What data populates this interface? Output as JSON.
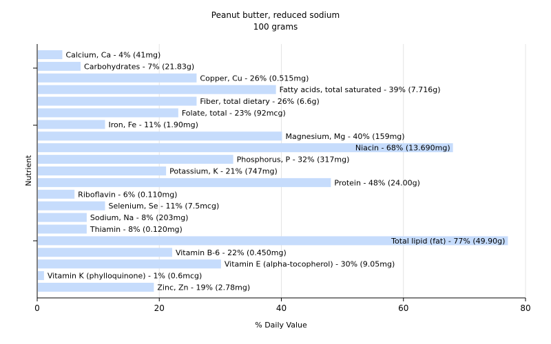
{
  "chart_data": {
    "type": "bar",
    "orientation": "horizontal",
    "title": "Peanut butter, reduced sodium",
    "subtitle": "100 grams",
    "xlabel": "% Daily Value",
    "ylabel": "Nutrient",
    "xlim": [
      0,
      80
    ],
    "xticks": [
      0,
      20,
      40,
      60,
      80
    ],
    "grid": true,
    "bar_color": "#c6dcfc",
    "categories": [
      "Calcium, Ca",
      "Carbohydrates",
      "Copper, Cu",
      "Fatty acids, total saturated",
      "Fiber, total dietary",
      "Folate, total",
      "Iron, Fe",
      "Magnesium, Mg",
      "Niacin",
      "Phosphorus, P",
      "Potassium, K",
      "Protein",
      "Riboflavin",
      "Selenium, Se",
      "Sodium, Na",
      "Thiamin",
      "Total lipid (fat)",
      "Vitamin B-6",
      "Vitamin E (alpha-tocopherol)",
      "Vitamin K (phylloquinone)",
      "Zinc, Zn"
    ],
    "values": [
      4,
      7,
      26,
      39,
      26,
      23,
      11,
      40,
      68,
      32,
      21,
      48,
      6,
      11,
      8,
      8,
      77,
      22,
      30,
      1,
      19
    ],
    "labels": [
      "Calcium, Ca - 4% (41mg)",
      "Carbohydrates - 7% (21.83g)",
      "Copper, Cu - 26% (0.515mg)",
      "Fatty acids, total saturated - 39% (7.716g)",
      "Fiber, total dietary - 26% (6.6g)",
      "Folate, total - 23% (92mcg)",
      "Iron, Fe - 11% (1.90mg)",
      "Magnesium, Mg - 40% (159mg)",
      "Niacin - 68% (13.690mg)",
      "Phosphorus, P - 32% (317mg)",
      "Potassium, K - 21% (747mg)",
      "Protein - 48% (24.00g)",
      "Riboflavin - 6% (0.110mg)",
      "Selenium, Se - 11% (7.5mcg)",
      "Sodium, Na - 8% (203mg)",
      "Thiamin - 8% (0.120mg)",
      "Total lipid (fat) - 77% (49.90g)",
      "Vitamin B-6 - 22% (0.450mg)",
      "Vitamin E (alpha-tocopherol) - 30% (9.05mg)",
      "Vitamin K (phylloquinone) - 1% (0.6mcg)",
      "Zinc, Zn - 19% (2.78mg)"
    ]
  }
}
